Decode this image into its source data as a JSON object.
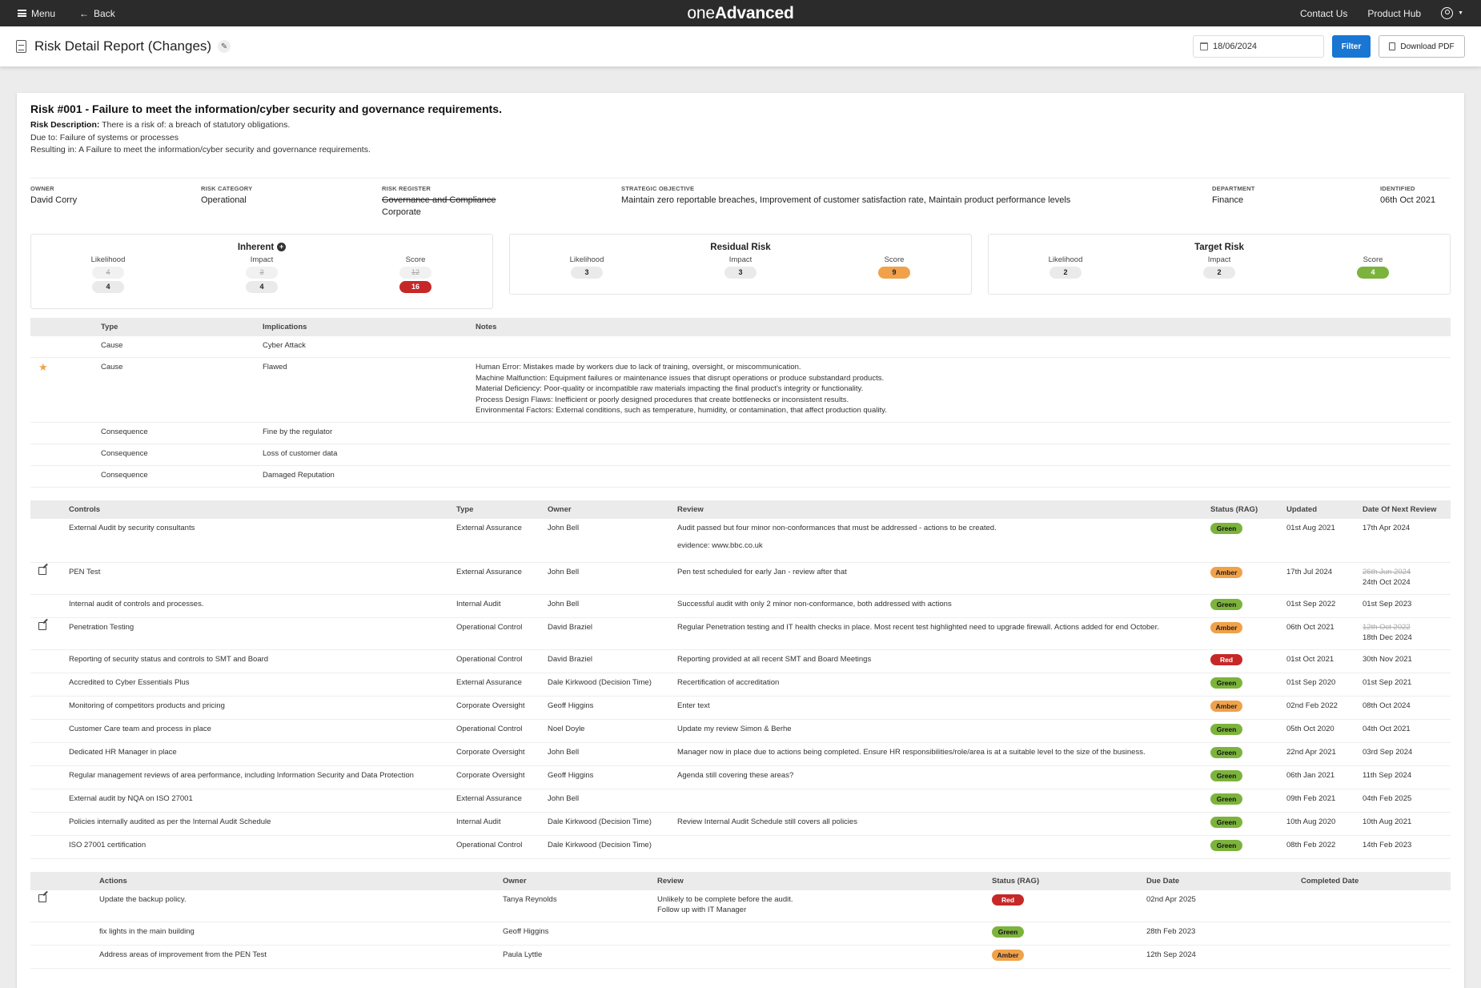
{
  "topbar": {
    "menu_label": "Menu",
    "back_label": "Back",
    "logo_part1": "one",
    "logo_part2": "Advanced",
    "contact_label": "Contact Us",
    "product_hub_label": "Product Hub"
  },
  "header": {
    "title": "Risk Detail Report (Changes)",
    "date_value": "18/06/2024",
    "filter_label": "Filter",
    "download_label": "Download PDF"
  },
  "risk": {
    "title": "Risk #001 - Failure to meet the information/cyber security and governance requirements.",
    "desc_label": "Risk Description:",
    "desc_line1": "There is a risk of: a breach of statutory obligations.",
    "desc_line2": "Due to: Failure of systems or processes",
    "desc_line3": "Resulting in: A Failure to meet the information/cyber security and governance requirements."
  },
  "meta": {
    "owner_label": "OWNER",
    "owner_value": "David Corry",
    "category_label": "RISK CATEGORY",
    "category_value": "Operational",
    "register_label": "RISK REGISTER",
    "register_old": "Governance and Compliance",
    "register_value": "Corporate",
    "objective_label": "STRATEGIC OBJECTIVE",
    "objective_value": "Maintain zero reportable breaches, Improvement of customer satisfaction rate, Maintain product performance levels",
    "department_label": "DEPARTMENT",
    "department_value": "Finance",
    "identified_label": "IDENTIFIED",
    "identified_value": "06th Oct 2021"
  },
  "scores": {
    "likelihood_label": "Likelihood",
    "impact_label": "Impact",
    "score_label": "Score",
    "inherent": {
      "title": "Inherent",
      "likelihood_old": "4",
      "likelihood": "4",
      "impact_old": "3",
      "impact": "4",
      "score_old": "12",
      "score": "16"
    },
    "residual": {
      "title": "Residual Risk",
      "likelihood": "3",
      "impact": "3",
      "score": "9"
    },
    "target": {
      "title": "Target Risk",
      "likelihood": "2",
      "impact": "2",
      "score": "4"
    }
  },
  "implications": {
    "headers": {
      "type": "Type",
      "implications": "Implications",
      "notes": "Notes"
    },
    "rows": [
      {
        "type": "Cause",
        "implication": "Cyber Attack"
      },
      {
        "type": "Cause",
        "implication": "Flawed",
        "note1": "Human Error: Mistakes made by workers due to lack of training, oversight, or miscommunication.",
        "note2": "Machine Malfunction: Equipment failures or maintenance issues that disrupt operations or produce substandard products.",
        "note3": "Material Deficiency: Poor-quality or incompatible raw materials impacting the final product's integrity or functionality.",
        "note4": "Process Design Flaws: Inefficient or poorly designed procedures that create bottlenecks or inconsistent results.",
        "note5": "Environmental Factors: External conditions, such as temperature, humidity, or contamination, that affect production quality."
      },
      {
        "type": "Consequence",
        "implication": "Fine by the regulator"
      },
      {
        "type": "Consequence",
        "implication": "Loss of customer data"
      },
      {
        "type": "Consequence",
        "implication": "Damaged Reputation"
      }
    ]
  },
  "controls": {
    "headers": {
      "controls": "Controls",
      "type": "Type",
      "owner": "Owner",
      "review": "Review",
      "status": "Status (RAG)",
      "updated": "Updated",
      "next": "Date Of Next Review"
    },
    "rows": [
      {
        "name": "External Audit by security consultants",
        "type": "External Assurance",
        "owner": "John Bell",
        "review": "Audit passed but four minor non-conformances that must be addressed - actions to be created.",
        "evidence": "evidence: www.bbc.co.uk",
        "status": "Green",
        "updated": "01st Aug 2021",
        "next": "17th Apr 2024"
      },
      {
        "name": "PEN Test",
        "type": "External Assurance",
        "owner": "John Bell",
        "review": "Pen test scheduled for early Jan - review after that",
        "status": "Amber",
        "updated": "17th Jul 2024",
        "next_old": "26th Jun 2024",
        "next": "24th Oct 2024"
      },
      {
        "name": "Internal audit of controls and processes.",
        "type": "Internal Audit",
        "owner": "John Bell",
        "review": "Successful audit with only 2 minor non-conformance, both addressed with actions",
        "status": "Green",
        "updated": "01st Sep 2022",
        "next": "01st Sep 2023"
      },
      {
        "name": "Penetration Testing",
        "type": "Operational Control",
        "owner": "David Braziel",
        "review": "Regular Penetration testing and IT health checks in place. Most recent test highlighted need to upgrade firewall. Actions added for end October.",
        "status": "Amber",
        "updated": "06th Oct 2021",
        "next_old": "12th Oct 2022",
        "next": "18th Dec 2024"
      },
      {
        "name": "Reporting of security status and controls to SMT and Board",
        "type": "Operational Control",
        "owner": "David Braziel",
        "review": "Reporting provided at all recent SMT and Board Meetings",
        "status": "Red",
        "updated": "01st Oct 2021",
        "next": "30th Nov 2021"
      },
      {
        "name": "Accredited to Cyber Essentials Plus",
        "type": "External Assurance",
        "owner": "Dale Kirkwood (Decision Time)",
        "review": "Recertification of accreditation",
        "status": "Green",
        "updated": "01st Sep 2020",
        "next": "01st Sep 2021"
      },
      {
        "name": "Monitoring of competitors products and pricing",
        "type": "Corporate Oversight",
        "owner": "Geoff Higgins",
        "review": "Enter text",
        "status": "Amber",
        "updated": "02nd Feb 2022",
        "next": "08th Oct 2024"
      },
      {
        "name": "Customer Care team and process in place",
        "type": "Operational Control",
        "owner": "Noel Doyle",
        "review": "Update my review Simon & Berhe",
        "status": "Green",
        "updated": "05th Oct 2020",
        "next": "04th Oct 2021"
      },
      {
        "name": "Dedicated HR Manager in place",
        "type": "Corporate Oversight",
        "owner": "John Bell",
        "review": "Manager now in place due to actions being completed. Ensure HR responsibilities/role/area is at a suitable level to the size of the business.",
        "status": "Green",
        "updated": "22nd Apr 2021",
        "next": "03rd Sep 2024"
      },
      {
        "name": "Regular management reviews of area performance, including Information Security and Data Protection",
        "type": "Corporate Oversight",
        "owner": "Geoff Higgins",
        "review": "Agenda still covering these areas?",
        "status": "Green",
        "updated": "06th Jan 2021",
        "next": "11th Sep 2024"
      },
      {
        "name": "External audit by NQA on ISO 27001",
        "type": "External Assurance",
        "owner": "John Bell",
        "review": "",
        "status": "Green",
        "updated": "09th Feb 2021",
        "next": "04th Feb 2025"
      },
      {
        "name": "Policies internally audited as per the Internal Audit Schedule",
        "type": "Internal Audit",
        "owner": "Dale Kirkwood (Decision Time)",
        "review": "Review Internal Audit Schedule still covers all policies",
        "status": "Green",
        "updated": "10th Aug 2020",
        "next": "10th Aug 2021"
      },
      {
        "name": "ISO 27001 certification",
        "type": "Operational Control",
        "owner": "Dale Kirkwood (Decision Time)",
        "review": "",
        "status": "Green",
        "updated": "08th Feb 2022",
        "next": "14th Feb 2023"
      }
    ]
  },
  "actions": {
    "headers": {
      "actions": "Actions",
      "owner": "Owner",
      "review": "Review",
      "status": "Status (RAG)",
      "due": "Due Date",
      "completed": "Completed Date"
    },
    "rows": [
      {
        "name": "Update the backup policy.",
        "owner": "Tanya Reynolds",
        "review1": "Unlikely to be complete before the audit.",
        "review2": "Follow up with IT Manager",
        "status": "Red",
        "due": "02nd Apr 2025",
        "completed": ""
      },
      {
        "name": "fix lights in the main building",
        "owner": "Geoff Higgins",
        "review1": "",
        "review2": "",
        "status": "Green",
        "due": "28th Feb 2023",
        "completed": ""
      },
      {
        "name": "Address areas of improvement from the PEN Test",
        "owner": "Paula Lyttle",
        "review1": "",
        "review2": "",
        "status": "Amber",
        "due": "12th Sep 2024",
        "completed": ""
      }
    ]
  }
}
